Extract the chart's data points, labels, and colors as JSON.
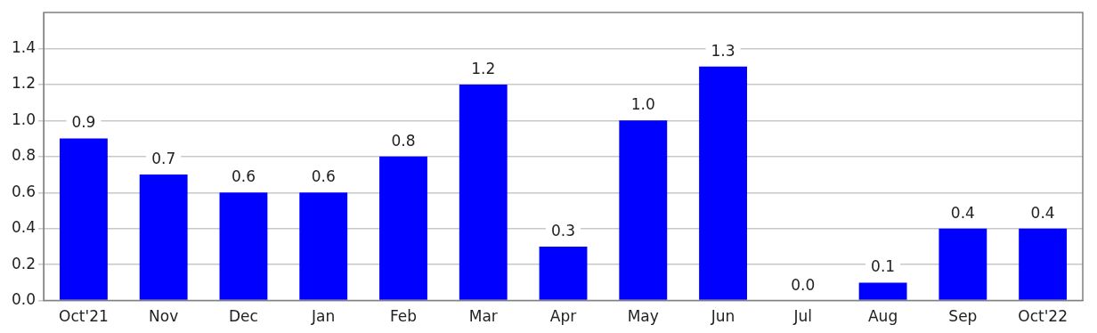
{
  "chart_data": {
    "type": "bar",
    "categories": [
      "Oct'21",
      "Nov",
      "Dec",
      "Jan",
      "Feb",
      "Mar",
      "Apr",
      "May",
      "Jun",
      "Jul",
      "Aug",
      "Sep",
      "Oct'22"
    ],
    "values": [
      0.9,
      0.7,
      0.6,
      0.6,
      0.8,
      1.2,
      0.3,
      1.0,
      1.3,
      0.0,
      0.1,
      0.4,
      0.4
    ],
    "color": "#0000ff",
    "ylim": [
      0,
      1.6
    ],
    "yticks": [
      {
        "value": 0,
        "label": "0.0"
      },
      {
        "value": 0.2,
        "label": "0.2"
      },
      {
        "value": 0.4,
        "label": "0.4"
      },
      {
        "value": 0.6,
        "label": "0.6"
      },
      {
        "value": 0.8,
        "label": "0.8"
      },
      {
        "value": 1,
        "label": "1.0"
      },
      {
        "value": 1.2,
        "label": "1.2"
      },
      {
        "value": 1.4,
        "label": "1.4"
      }
    ],
    "value_labels": [
      "0.9",
      "0.7",
      "0.6",
      "0.6",
      "0.8",
      "1.2",
      "0.3",
      "1.0",
      "1.3",
      "0.0",
      "0.1",
      "0.4",
      "0.4"
    ],
    "grid": "y"
  }
}
